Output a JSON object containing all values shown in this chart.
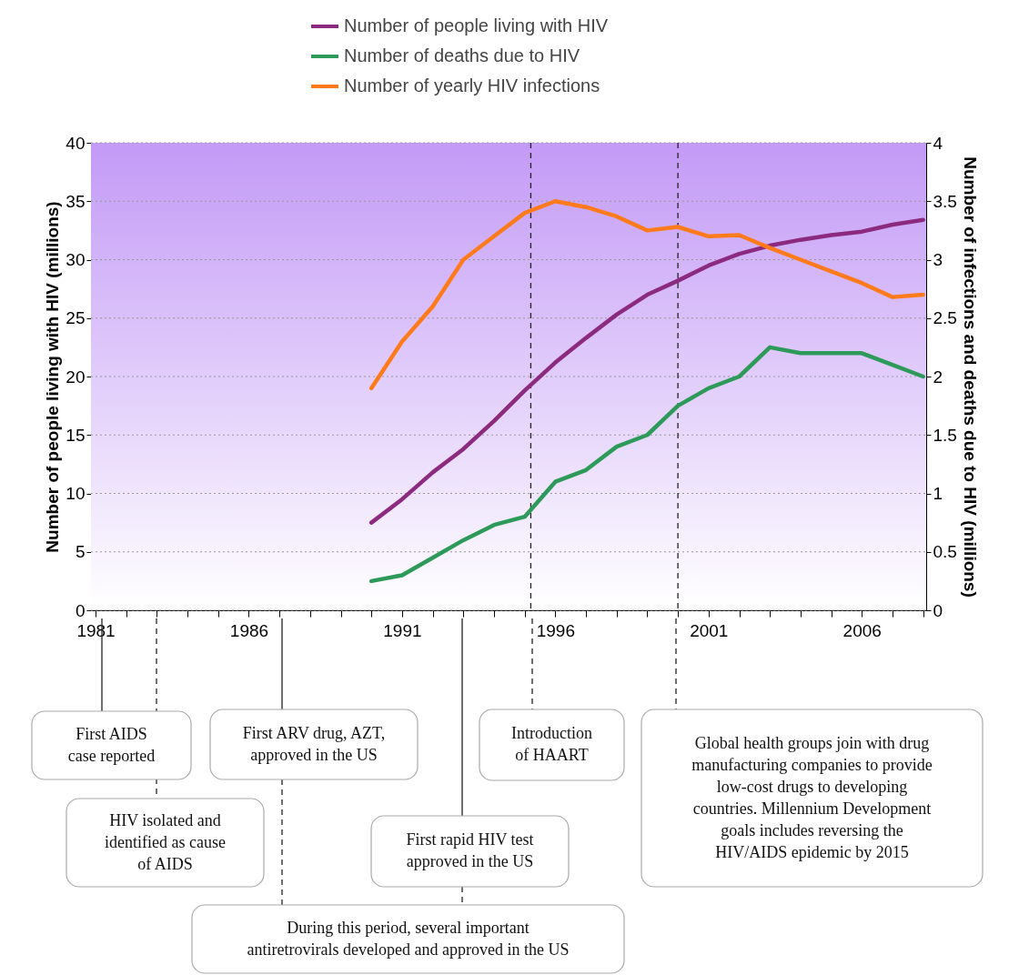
{
  "chart_data": {
    "type": "line",
    "ylabel": "Number of people living with HIV (millions)",
    "y2label": "Number of infections and deaths due to HIV (millions)",
    "x": [
      1990,
      1991,
      1992,
      1993,
      1994,
      1995,
      1996,
      1997,
      1998,
      1999,
      2000,
      2001,
      2002,
      2003,
      2004,
      2005,
      2006,
      2007,
      2008
    ],
    "series": [
      {
        "name": "Number of people living with HIV",
        "color": "#8b2a7f",
        "values": [
          7.5,
          9.5,
          11.8,
          13.8,
          16.2,
          18.8,
          21.2,
          23.3,
          25.3,
          27,
          28.2,
          29.5,
          30.5,
          31.2,
          31.7,
          32.1,
          32.4,
          33,
          33.4
        ]
      },
      {
        "name": "Number of deaths due to HIV",
        "color": "#2e9a5a",
        "axis": "y2",
        "values": [
          0.25,
          0.3,
          0.45,
          0.6,
          0.73,
          0.8,
          1.1,
          1.2,
          1.4,
          1.5,
          1.75,
          1.9,
          2.0,
          2.25,
          2.2,
          2.2,
          2.2,
          2.1,
          2.0
        ]
      },
      {
        "name": "Number of yearly HIV infections",
        "color": "#ff7a1a",
        "axis": "y2",
        "values": [
          1.9,
          2.3,
          2.6,
          3.0,
          3.2,
          3.4,
          3.5,
          3.45,
          3.37,
          3.25,
          3.28,
          3.2,
          3.21,
          3.1,
          3.0,
          2.9,
          2.8,
          2.68,
          2.7
        ]
      }
    ],
    "xlim": [
      1980.85,
      2008.1
    ],
    "xticks": [
      1981,
      {
        "value": 1982,
        "label": null
      },
      {
        "value": 1983,
        "label": null
      },
      {
        "value": 1984,
        "label": null
      },
      {
        "value": 1985,
        "label": null
      },
      1986,
      {
        "value": 1987,
        "label": null
      },
      {
        "value": 1988,
        "label": null
      },
      {
        "value": 1989,
        "label": null
      },
      {
        "value": 1990,
        "label": null
      },
      1991,
      {
        "value": 1992,
        "label": null
      },
      {
        "value": 1993,
        "label": null
      },
      {
        "value": 1994,
        "label": null
      },
      {
        "value": 1995,
        "label": null
      },
      1996,
      {
        "value": 1997,
        "label": null
      },
      {
        "value": 1998,
        "label": null
      },
      {
        "value": 1999,
        "label": null
      },
      {
        "value": 2000,
        "label": null
      },
      2001,
      {
        "value": 2002,
        "label": null
      },
      {
        "value": 2003,
        "label": null
      },
      {
        "value": 2004,
        "label": null
      },
      {
        "value": 2005,
        "label": null
      },
      2006,
      {
        "value": 2007,
        "label": null
      },
      {
        "value": 2008,
        "label": null
      }
    ],
    "ylim": [
      0,
      40
    ],
    "yticks": [
      0,
      5,
      10,
      15,
      20,
      25,
      30,
      35,
      40
    ],
    "y2lim": [
      0,
      4
    ],
    "y2ticks": [
      0,
      0.5,
      1,
      1.5,
      2,
      2.5,
      3,
      3.5,
      4
    ],
    "grid": "y",
    "legend": "top",
    "line_style": "solid",
    "bands": [
      {
        "axis": "y",
        "from": 0,
        "to": 40,
        "color": "#c39af6"
      }
    ],
    "ref_lines": [
      {
        "axis": "x",
        "value": 1995.2,
        "line_style": "dashed"
      },
      {
        "axis": "x",
        "value": 2000,
        "line_style": "dashed"
      }
    ],
    "annotations": [
      "First AIDS case reported",
      "HIV isolated and identified as cause of AIDS",
      "First ARV drug, AZT, approved in the US",
      "During this period, several important antiretrovirals developed and approved in the US",
      "First rapid HIV test approved in the US",
      "Introduction of HAART",
      "Global health groups join with drug manufacturing companies to provide low-cost drugs to developing countries. Millennium Development goals includes reversing the HIV/AIDS epidemic by 2015"
    ]
  }
}
